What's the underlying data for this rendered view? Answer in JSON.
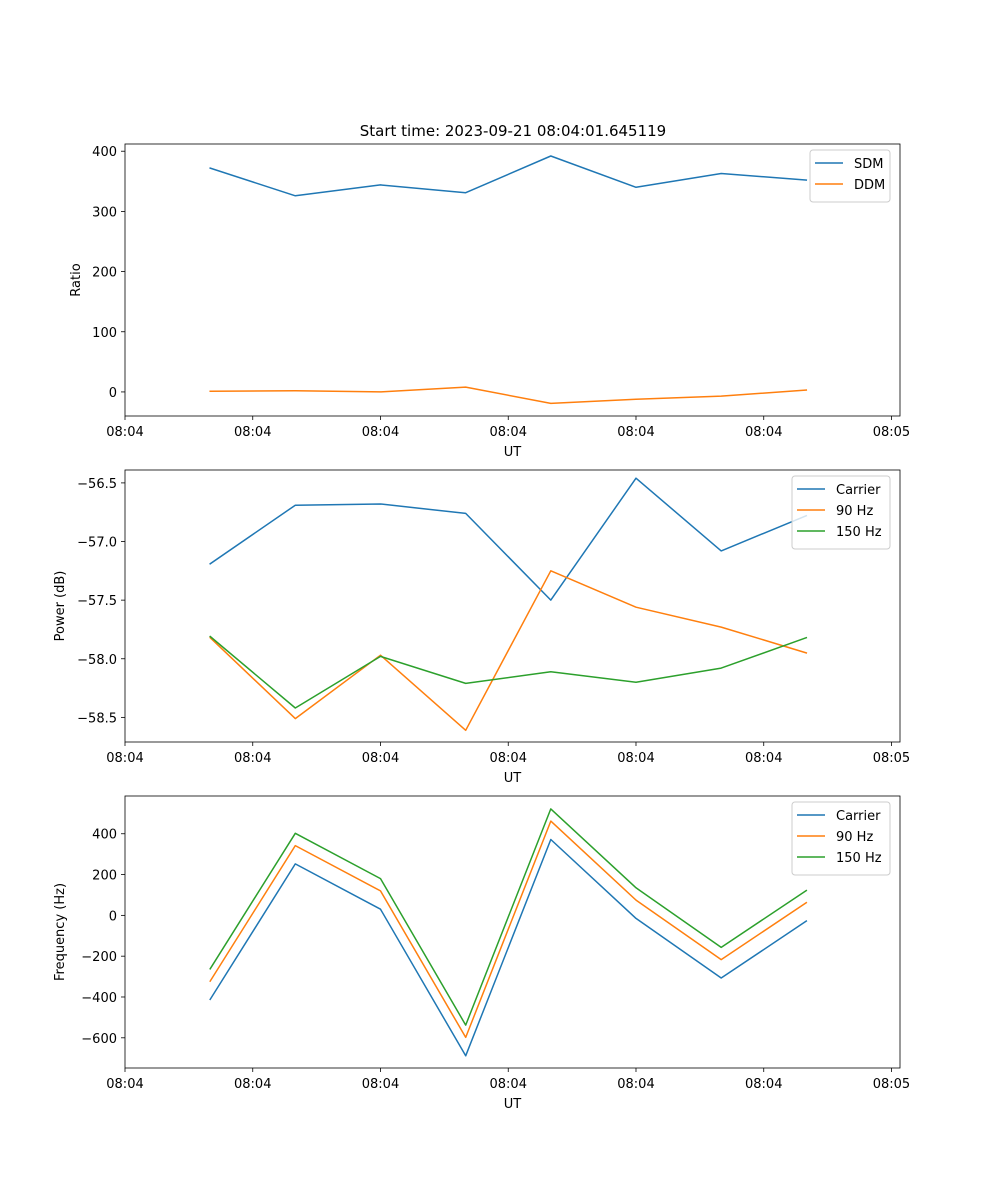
{
  "figure_title": "Start time: 2023-09-21 08:04:01.645119",
  "colors": {
    "blue": "#1f77b4",
    "orange": "#ff7f0e",
    "green": "#2ca02c"
  },
  "chart_data": [
    {
      "type": "line",
      "title": "Start time: 2023-09-21 08:04:01.645119",
      "xlabel": "UT",
      "ylabel": "Ratio",
      "x": [
        1,
        2,
        3,
        4,
        5,
        6,
        7,
        8
      ],
      "xlim": [
        0,
        9.1
      ],
      "xtick_positions": [
        0,
        1.5,
        3,
        4.5,
        6,
        7.5,
        9
      ],
      "xtick_labels": [
        "08:04",
        "08:04",
        "08:04",
        "08:04",
        "08:04",
        "08:04",
        "08:05"
      ],
      "ylim": [
        -40,
        412
      ],
      "yticks": [
        0,
        100,
        200,
        300,
        400
      ],
      "ytick_labels": [
        "0",
        "100",
        "200",
        "300",
        "400"
      ],
      "legend_position": "top-right",
      "series": [
        {
          "name": "SDM",
          "color": "#1f77b4",
          "values": [
            372,
            326,
            344,
            331,
            392,
            340,
            363,
            352
          ]
        },
        {
          "name": "DDM",
          "color": "#ff7f0e",
          "values": [
            1,
            2,
            0,
            8,
            -19,
            -12,
            -7,
            3
          ]
        }
      ]
    },
    {
      "type": "line",
      "title": "",
      "xlabel": "UT",
      "ylabel": "Power (dB)",
      "x": [
        1,
        2,
        3,
        4,
        5,
        6,
        7,
        8
      ],
      "xlim": [
        0,
        9.1
      ],
      "xtick_positions": [
        0,
        1.5,
        3,
        4.5,
        6,
        7.5,
        9
      ],
      "xtick_labels": [
        "08:04",
        "08:04",
        "08:04",
        "08:04",
        "08:04",
        "08:04",
        "08:05"
      ],
      "ylim": [
        -58.71,
        -56.39
      ],
      "yticks": [
        -56.5,
        -57.0,
        -57.5,
        -58.0,
        -58.5
      ],
      "ytick_labels": [
        "−56.5",
        "−57.0",
        "−57.5",
        "−58.0",
        "−58.5"
      ],
      "legend_position": "top-right",
      "series": [
        {
          "name": "Carrier",
          "color": "#1f77b4",
          "values": [
            -57.19,
            -56.69,
            -56.68,
            -56.76,
            -57.5,
            -56.46,
            -57.08,
            -56.78
          ]
        },
        {
          "name": "90 Hz",
          "color": "#ff7f0e",
          "values": [
            -57.82,
            -58.51,
            -57.97,
            -58.61,
            -57.25,
            -57.56,
            -57.73,
            -57.95
          ]
        },
        {
          "name": "150 Hz",
          "color": "#2ca02c",
          "values": [
            -57.81,
            -58.42,
            -57.98,
            -58.21,
            -58.11,
            -58.2,
            -58.08,
            -57.82
          ]
        }
      ]
    },
    {
      "type": "line",
      "title": "",
      "xlabel": "UT",
      "ylabel": "Frequency (Hz)",
      "x": [
        1,
        2,
        3,
        4,
        5,
        6,
        7,
        8
      ],
      "xlim": [
        0,
        9.1
      ],
      "xtick_positions": [
        0,
        1.5,
        3,
        4.5,
        6,
        7.5,
        9
      ],
      "xtick_labels": [
        "08:04",
        "08:04",
        "08:04",
        "08:04",
        "08:04",
        "08:04",
        "08:05"
      ],
      "ylim": [
        -748,
        585
      ],
      "yticks": [
        400,
        200,
        0,
        -200,
        -400,
        -600
      ],
      "ytick_labels": [
        "400",
        "200",
        "0",
        "−200",
        "−400",
        "−600"
      ],
      "legend_position": "top-right",
      "series": [
        {
          "name": "Carrier",
          "color": "#1f77b4",
          "values": [
            -412,
            252,
            30,
            -688,
            372,
            -15,
            -307,
            -28
          ]
        },
        {
          "name": "90 Hz",
          "color": "#ff7f0e",
          "values": [
            -322,
            342,
            120,
            -598,
            462,
            75,
            -217,
            62
          ]
        },
        {
          "name": "150 Hz",
          "color": "#2ca02c",
          "values": [
            -262,
            402,
            180,
            -538,
            522,
            135,
            -157,
            122
          ]
        }
      ]
    }
  ]
}
